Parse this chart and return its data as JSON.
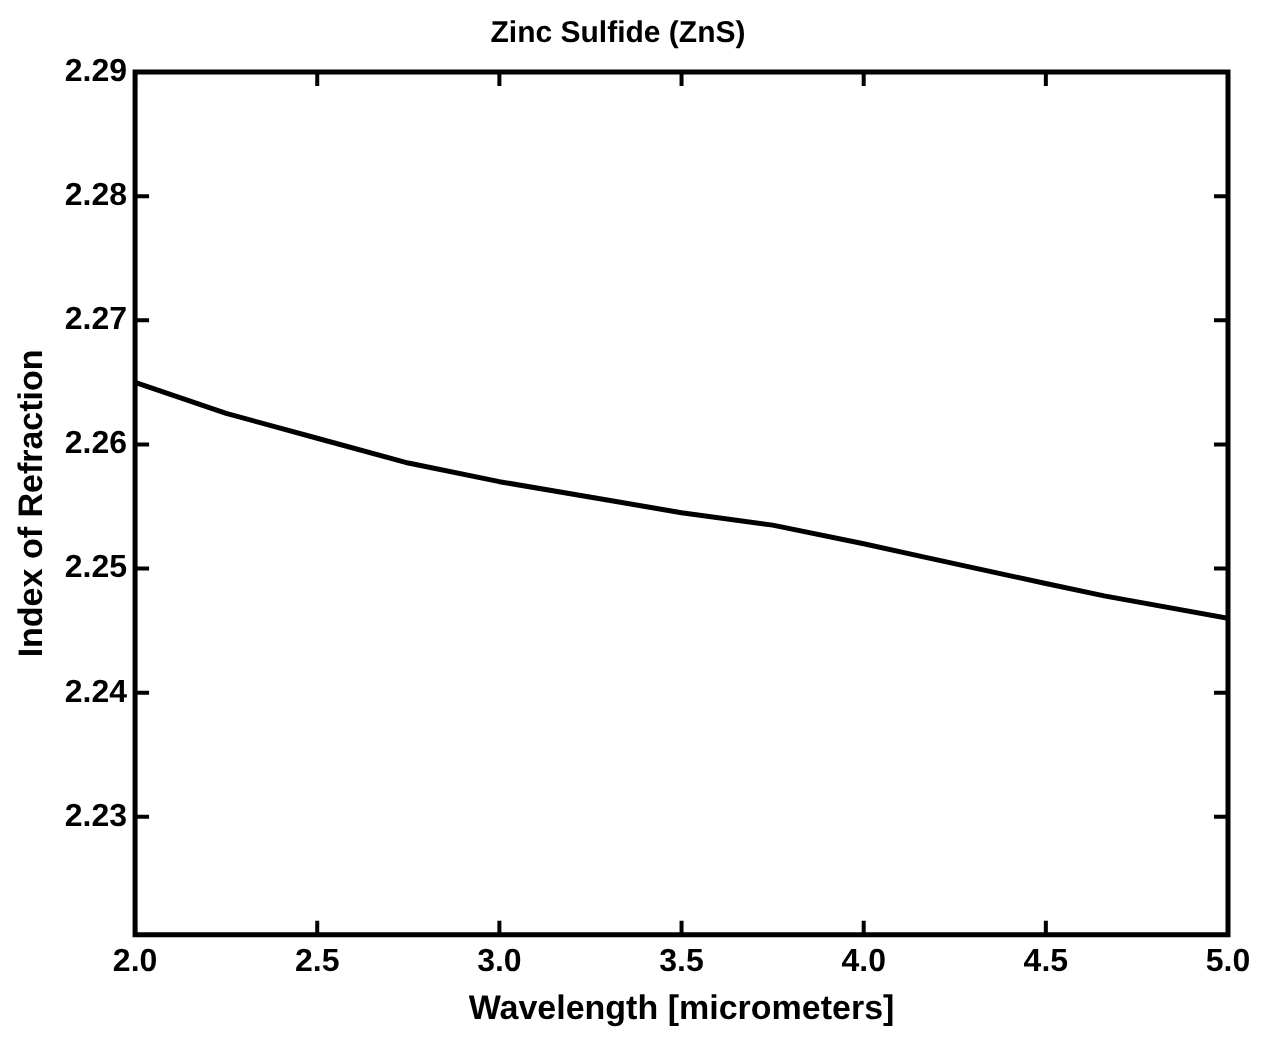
{
  "chart_data": {
    "type": "line",
    "title": "Zinc Sulfide (ZnS)",
    "xlabel": "Wavelength [micrometers]",
    "ylabel": "Index of Refraction",
    "x": [
      2.0,
      2.25,
      2.5,
      2.75,
      3.0,
      3.3,
      3.5,
      3.75,
      4.0,
      4.17,
      4.5,
      4.66,
      5.0
    ],
    "series": [
      {
        "color": "#000000",
        "values": [
          2.265,
          2.2625,
          2.2605,
          2.2585,
          2.257,
          2.2555,
          2.2545,
          2.2535,
          2.252,
          2.2509,
          2.2488,
          2.2478,
          2.246
        ]
      }
    ],
    "xlim": [
      2.0,
      5.0
    ],
    "xticks": [
      {
        "value": 2.0,
        "label": "2.0"
      },
      2.5,
      {
        "value": 3.0,
        "label": "3.0"
      },
      3.5,
      {
        "value": 4.0,
        "label": "4.0"
      },
      4.5,
      {
        "value": 5.0,
        "label": "5.0"
      }
    ],
    "ylim": [
      2.2205,
      2.29
    ],
    "yticks": [
      2.23,
      2.24,
      2.25,
      2.26,
      2.27,
      2.28,
      2.29
    ],
    "grid": false,
    "legend": false,
    "marker": "none",
    "line_style": "solid"
  }
}
